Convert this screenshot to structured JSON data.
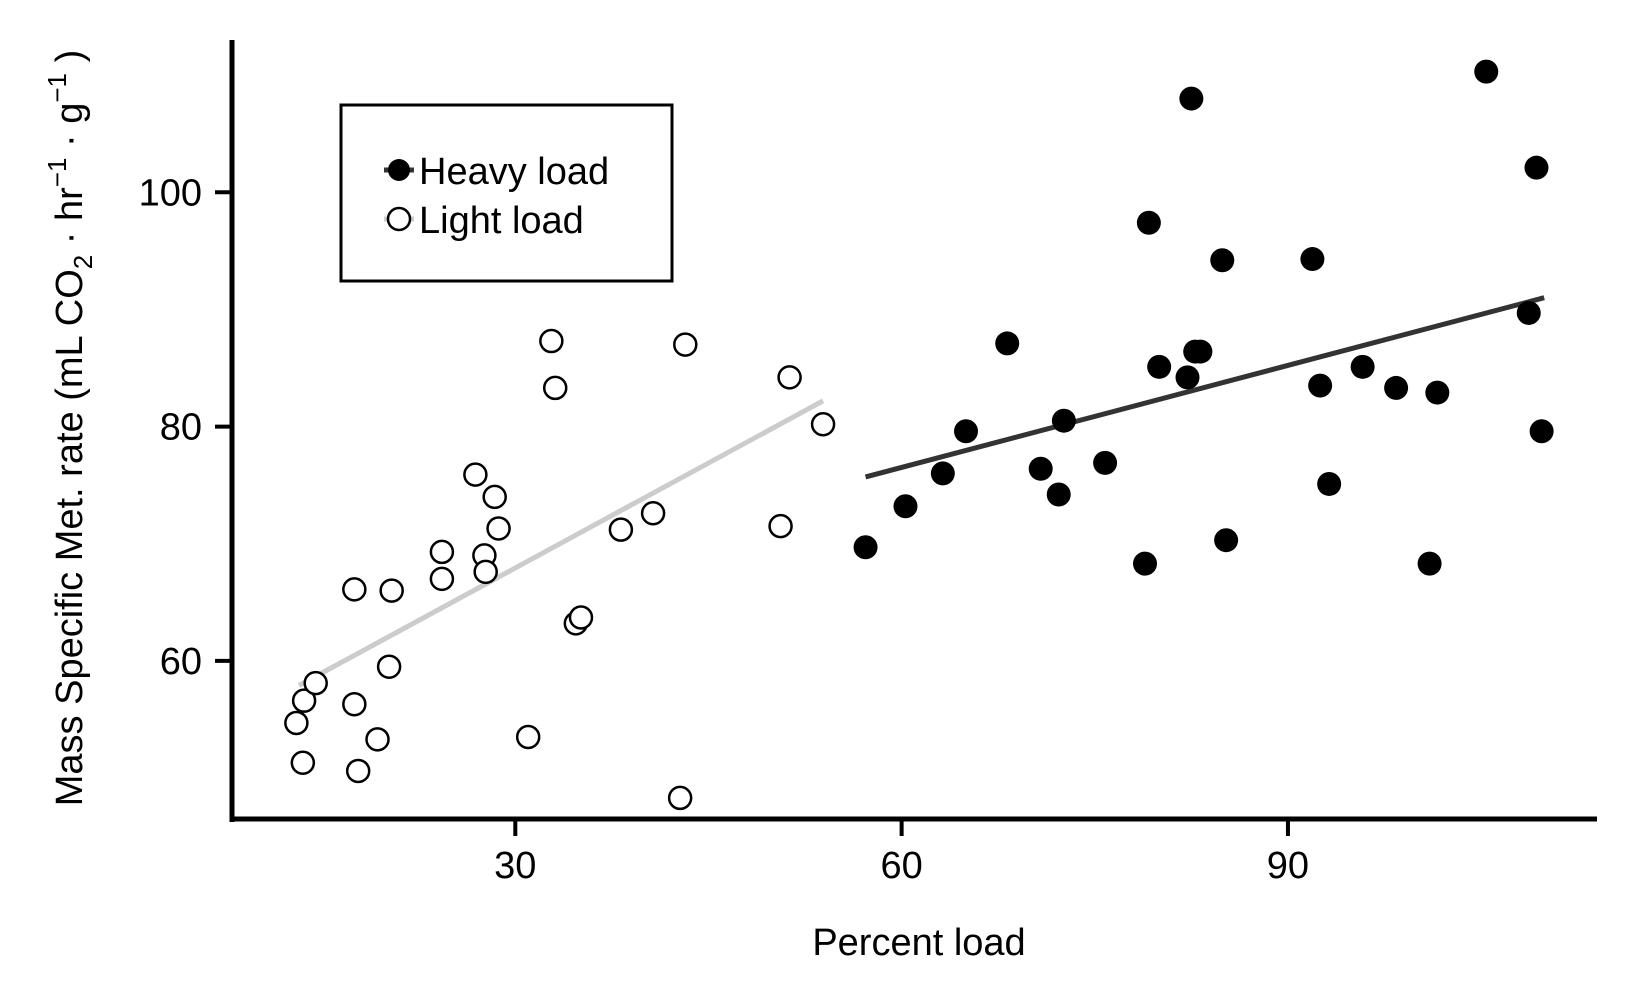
{
  "chart_data": {
    "type": "scatter",
    "title": "",
    "xlabel": "Percent load",
    "ylabel_parts": {
      "pre": "Mass Specific Met. rate (mL CO",
      "sub2": "2",
      "mid1": " · hr",
      "sup1": "−1",
      "mid2": " · g",
      "sup2": "−1",
      "post": " )"
    },
    "xlim": [
      8,
      114
    ],
    "ylim": [
      46.5,
      113
    ],
    "x_ticks": [
      30,
      60,
      90
    ],
    "y_ticks": [
      60,
      80,
      100
    ],
    "grid": false,
    "legend_position": "top-left",
    "series": [
      {
        "name": "Heavy load",
        "marker": "filled-circle",
        "color": "#000000",
        "line_color": "#333333",
        "x": [
          57.2,
          60.3,
          63.2,
          65.0,
          68.2,
          70.8,
          72.2,
          72.6,
          75.8,
          78.9,
          79.2,
          80.0,
          82.2,
          82.5,
          82.8,
          83.2,
          84.9,
          85.2,
          91.9,
          92.5,
          93.2,
          95.8,
          98.4,
          101.0,
          101.6,
          105.4,
          108.7,
          109.3,
          109.7
        ],
        "y": [
          69.7,
          73.2,
          76.0,
          79.6,
          87.1,
          76.4,
          74.2,
          80.5,
          76.9,
          68.3,
          97.4,
          85.1,
          84.2,
          108.0,
          86.4,
          86.4,
          94.2,
          70.3,
          94.3,
          83.5,
          75.1,
          85.1,
          83.3,
          68.3,
          82.9,
          110.3,
          89.7,
          102.1,
          79.6
        ],
        "fit": {
          "x": [
            57.2,
            109.9
          ],
          "y": [
            75.7,
            91.0
          ]
        }
      },
      {
        "name": "Light load",
        "marker": "open-circle",
        "color": "#000000",
        "line_color": "#cccccc",
        "x": [
          13.0,
          13.5,
          13.6,
          14.5,
          17.5,
          17.5,
          17.8,
          19.3,
          20.2,
          20.4,
          24.3,
          24.3,
          26.9,
          27.6,
          27.7,
          28.4,
          28.7,
          31.0,
          32.8,
          33.1,
          34.7,
          35.1,
          38.2,
          40.7,
          42.8,
          43.2,
          50.6,
          51.3,
          53.9
        ],
        "y": [
          54.7,
          51.3,
          56.6,
          58.1,
          66.1,
          56.3,
          50.6,
          53.3,
          59.5,
          66.0,
          69.3,
          67.0,
          75.9,
          69.0,
          67.6,
          74.0,
          71.3,
          53.5,
          87.3,
          83.3,
          63.2,
          63.7,
          71.2,
          72.6,
          48.3,
          87.0,
          71.5,
          84.2,
          80.2
        ],
        "fit": {
          "x": [
            13.2,
            53.9
          ],
          "y": [
            57.9,
            82.2
          ]
        }
      }
    ]
  }
}
